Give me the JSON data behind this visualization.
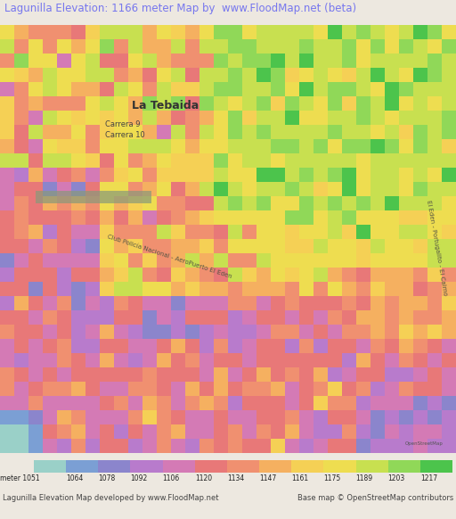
{
  "title": "Lagunilla Elevation: 1166 meter Map by  www.FloodMap.net (beta)",
  "title_color": "#7777ee",
  "bg_color": "#ede8e0",
  "colorbar_colors": [
    "#9ad0c8",
    "#7b9fd4",
    "#8b85cc",
    "#b87bcc",
    "#d47ab5",
    "#e87878",
    "#e87878",
    "#f0a080",
    "#f5b870",
    "#f5d060",
    "#f0e855",
    "#b0e060",
    "#60cc60"
  ],
  "colorbar_values": [
    1051,
    1064,
    1078,
    1092,
    1106,
    1120,
    1134,
    1147,
    1161,
    1175,
    1189,
    1203,
    1217
  ],
  "footer_left": "Lagunilla Elevation Map developed by www.FloodMap.net",
  "footer_right": "Base map © OpenStreetMap contributors"
}
